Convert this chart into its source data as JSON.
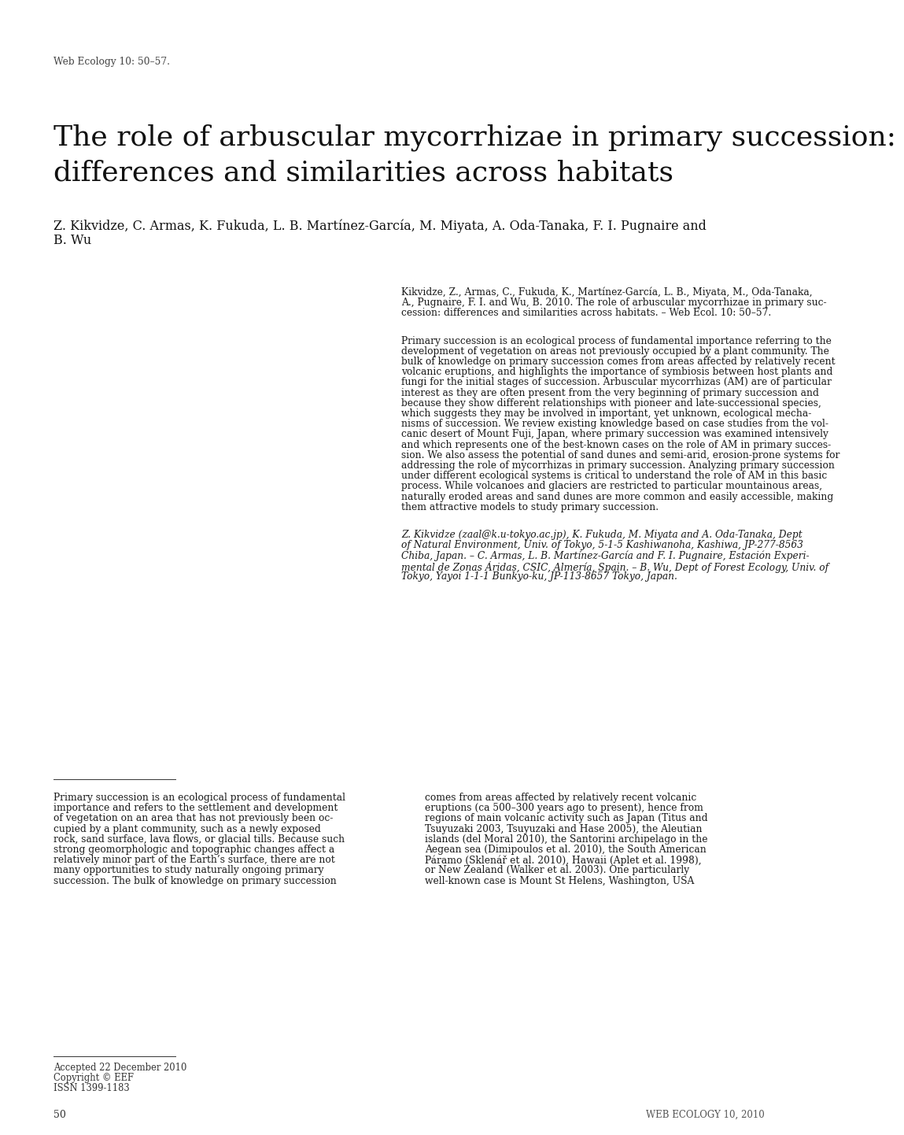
{
  "background_color": "#ffffff",
  "header_text": "Web Ecology 10: 50–57.",
  "title_line1": "The role of arbuscular mycorrhizae in primary succession:",
  "title_line2": "differences and similarities across habitats",
  "authors_line1": "Z. Kikvidze, C. Armas, K. Fukuda, L. B. Martínez-García, M. Miyata, A. Oda-Tanaka, F. I. Pugnaire and",
  "authors_line2": "B. Wu",
  "citation_line1": "Kikvidze, Z., Armas, C., Fukuda, K., Martínez-García, L. B., Miyata, M., Oda-Tanaka,",
  "citation_line2": "A., Pugnaire, F. I. and Wu, B. 2010. The role of arbuscular mycorrhizae in primary suc-",
  "citation_line3": "cession: differences and similarities across habitats. – Web Ecol. 10: 50–57.",
  "abstract": "Primary succession is an ecological process of fundamental importance referring to the development of vegetation on areas not previously occupied by a plant community. The bulk of knowledge on primary succession comes from areas affected by relatively recent volcanic eruptions, and highlights the importance of symbiosis between host plants and fungi for the initial stages of succession. Arbuscular mycorrhizas (AM) are of particular interest as they are often present from the very beginning of primary succession and because they show different relationships with pioneer and late-successional species, which suggests they may be involved in important, yet unknown, ecological mechanisms of succession. We review existing knowledge based on case studies from the volcanic desert of Mount Fuji, Japan, where primary succession was examined intensively and which represents one of the best-known cases on the role of AM in primary succession. We also assess the potential of sand dunes and semi-arid, erosion-prone systems for addressing the role of mycorrhizas in primary succession. Analyzing primary succession under different ecological systems is critical to understand the role of AM in this basic process. While volcanoes and glaciers are restricted to particular mountainous areas, naturally eroded areas and sand dunes are more common and easily accessible, making them attractive models to study primary succession.",
  "address_line1": "Z. Kikvidze (zaal@k.u-tokyo.ac.jp), K. Fukuda, M. Miyata and A. Oda-Tanaka, Dept",
  "address_line2": "of Natural Environment, Univ. of Tokyo, 5-1-5 Kashiwanoha, Kashiwa, JP-277-8563",
  "address_line3": "Chiba, Japan. – C. Armas, L. B. Martínez-García and F. I. Pugnaire, Estación Experi-",
  "address_line4": "mental de Zonas Áridas, CSIC, Almería, Spain. – B. Wu, Dept of Forest Ecology, Univ. of",
  "address_line5": "Tokyo, Yayoi 1-1-1 Bunkyo-ku, JP-113-8657 Tokyo, Japan.",
  "body_col1_lines": [
    "Primary succession is an ecological process of fundamental",
    "importance and refers to the settlement and development",
    "of vegetation on an area that has not previously been oc-",
    "cupied by a plant community, such as a newly exposed",
    "rock, sand surface, lava flows, or glacial tills. Because such",
    "strong geomorphologic and topographic changes affect a",
    "relatively minor part of the Earth’s surface, there are not",
    "many opportunities to study naturally ongoing primary",
    "succession. The bulk of knowledge on primary succession"
  ],
  "body_col2_lines": [
    "comes from areas affected by relatively recent volcanic",
    "eruptions (ca 500–300 years ago to present), hence from",
    "regions of main volcanic activity such as Japan (Titus and",
    "Tsuyuzaki 2003, Tsuyuzaki and Hase 2005), the Aleutian",
    "islands (del Moral 2010), the Santorini archipelago in the",
    "Aegean sea (Dimipoulos et al. 2010), the South American",
    "Páramo (Sklenář et al. 2010), Hawaii (Aplet et al. 1998),",
    "or New Zealand (Walker et al. 2003). One particularly",
    "well-known case is Mount St Helens, Washington, USA"
  ],
  "footer_accepted": "Accepted 22 December 2010",
  "footer_copyright": "Copyright © EEF",
  "footer_issn": "ISSN 1399-1183",
  "footer_page": "50",
  "footer_journal": "WEB ECOLOGY 10, 2010",
  "abstract_lines": [
    "Primary succession is an ecological process of fundamental importance referring to the",
    "development of vegetation on areas not previously occupied by a plant community. The",
    "bulk of knowledge on primary succession comes from areas affected by relatively recent",
    "volcanic eruptions, and highlights the importance of symbiosis between host plants and",
    "fungi for the initial stages of succession. Arbuscular mycorrhizas (AM) are of particular",
    "interest as they are often present from the very beginning of primary succession and",
    "because they show different relationships with pioneer and late-successional species,",
    "which suggests they may be involved in important, yet unknown, ecological mecha-",
    "nisms of succession. We review existing knowledge based on case studies from the vol-",
    "canic desert of Mount Fuji, Japan, where primary succession was examined intensively",
    "and which represents one of the best-known cases on the role of AM in primary succes-",
    "sion. We also assess the potential of sand dunes and semi-arid, erosion-prone systems for",
    "addressing the role of mycorrhizas in primary succession. Analyzing primary succession",
    "under different ecological systems is critical to understand the role of AM in this basic",
    "process. While volcanoes and glaciers are restricted to particular mountainous areas,",
    "naturally eroded areas and sand dunes are more common and easily accessible, making",
    "them attractive models to study primary succession."
  ]
}
